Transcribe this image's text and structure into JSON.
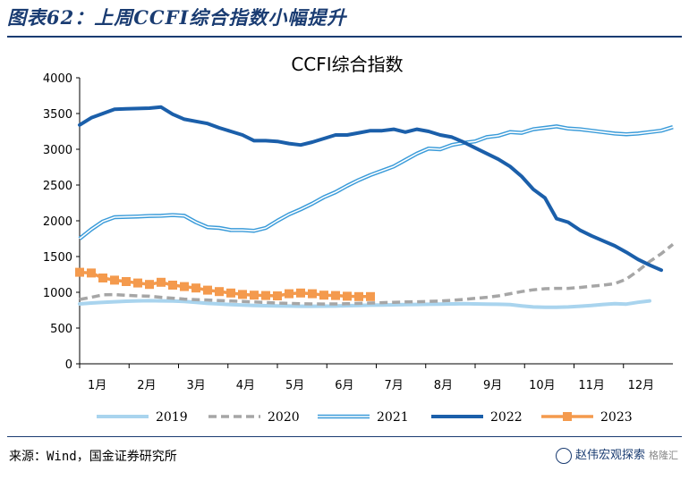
{
  "figure": {
    "title": "图表62：上周CCFI综合指数小幅提升",
    "source": "来源：Wind，国金证券研究所",
    "watermark": "赵伟宏观探索",
    "watermark_sub": "格隆汇"
  },
  "chart_data": {
    "type": "line",
    "title": "CCFI综合指数",
    "xlabel": "",
    "ylabel": "",
    "ylim": [
      0,
      4000
    ],
    "yticks": [
      0,
      500,
      1000,
      1500,
      2000,
      2500,
      3000,
      3500,
      4000
    ],
    "xlim": [
      1,
      52
    ],
    "categories": [
      "1月",
      "2月",
      "3月",
      "4月",
      "5月",
      "6月",
      "7月",
      "8月",
      "9月",
      "10月",
      "11月",
      "12月"
    ],
    "legend_position": "bottom",
    "grid": false,
    "series": [
      {
        "name": "2019",
        "color": "#a9d4ee",
        "style": "solid-thick",
        "x": [
          1,
          2,
          3,
          4,
          5,
          6,
          7,
          8,
          9,
          10,
          11,
          12,
          13,
          14,
          15,
          16,
          17,
          18,
          19,
          20,
          21,
          22,
          23,
          24,
          25,
          26,
          27,
          28,
          29,
          30,
          31,
          32,
          33,
          34,
          35,
          36,
          37,
          38,
          39,
          40,
          41,
          42,
          43,
          44,
          45,
          46,
          47,
          48,
          49,
          50
        ],
        "values": [
          838,
          850,
          860,
          868,
          875,
          880,
          882,
          880,
          878,
          872,
          860,
          845,
          838,
          828,
          822,
          815,
          812,
          810,
          808,
          805,
          805,
          806,
          808,
          812,
          815,
          820,
          822,
          825,
          828,
          830,
          832,
          835,
          838,
          840,
          838,
          835,
          832,
          828,
          810,
          795,
          790,
          790,
          795,
          805,
          815,
          830,
          840,
          835,
          860,
          880
        ]
      },
      {
        "name": "2020",
        "color": "#a6a6a6",
        "style": "dashed",
        "x": [
          1,
          2,
          3,
          4,
          5,
          6,
          7,
          8,
          9,
          10,
          11,
          12,
          13,
          14,
          15,
          16,
          17,
          18,
          19,
          20,
          21,
          22,
          23,
          24,
          25,
          26,
          27,
          28,
          29,
          30,
          31,
          32,
          33,
          34,
          35,
          36,
          37,
          38,
          39,
          40,
          41,
          42,
          43,
          44,
          45,
          46,
          47,
          48,
          49,
          50,
          51,
          52
        ],
        "values": [
          900,
          930,
          965,
          968,
          958,
          950,
          945,
          930,
          918,
          905,
          898,
          892,
          885,
          878,
          872,
          865,
          858,
          850,
          845,
          840,
          838,
          836,
          838,
          840,
          845,
          850,
          855,
          860,
          865,
          868,
          872,
          878,
          888,
          900,
          915,
          930,
          950,
          980,
          1010,
          1035,
          1050,
          1055,
          1055,
          1068,
          1085,
          1100,
          1120,
          1185,
          1300,
          1430,
          1540,
          1670
        ]
      },
      {
        "name": "2021",
        "color": "#3a9bd9",
        "style": "double",
        "x": [
          1,
          2,
          3,
          4,
          5,
          6,
          7,
          8,
          9,
          10,
          11,
          12,
          13,
          14,
          15,
          16,
          17,
          18,
          19,
          20,
          21,
          22,
          23,
          24,
          25,
          26,
          27,
          28,
          29,
          30,
          31,
          32,
          33,
          34,
          35,
          36,
          37,
          38,
          39,
          40,
          41,
          42,
          43,
          44,
          45,
          46,
          47,
          48,
          49,
          50,
          51,
          52
        ],
        "values": [
          1750,
          1880,
          1990,
          2050,
          2055,
          2060,
          2068,
          2070,
          2080,
          2070,
          1980,
          1910,
          1900,
          1870,
          1870,
          1860,
          1900,
          2000,
          2090,
          2160,
          2240,
          2330,
          2400,
          2490,
          2570,
          2640,
          2700,
          2760,
          2850,
          2940,
          3010,
          3000,
          3060,
          3090,
          3110,
          3170,
          3190,
          3240,
          3230,
          3280,
          3300,
          3320,
          3290,
          3280,
          3260,
          3240,
          3220,
          3210,
          3220,
          3240,
          3260,
          3310
        ]
      },
      {
        "name": "2022",
        "color": "#1b5faa",
        "style": "solid-thick",
        "x": [
          1,
          2,
          3,
          4,
          5,
          6,
          7,
          8,
          9,
          10,
          11,
          12,
          13,
          14,
          15,
          16,
          17,
          18,
          19,
          20,
          21,
          22,
          23,
          24,
          25,
          26,
          27,
          28,
          29,
          30,
          31,
          32,
          33,
          34,
          35,
          36,
          37,
          38,
          39,
          40,
          41,
          42,
          43,
          44,
          45,
          46,
          47,
          48,
          49,
          50,
          51
        ],
        "values": [
          3340,
          3440,
          3500,
          3560,
          3565,
          3570,
          3575,
          3590,
          3490,
          3420,
          3390,
          3360,
          3300,
          3250,
          3200,
          3120,
          3120,
          3110,
          3080,
          3060,
          3100,
          3150,
          3200,
          3200,
          3230,
          3260,
          3260,
          3280,
          3240,
          3280,
          3250,
          3200,
          3170,
          3100,
          3020,
          2940,
          2860,
          2760,
          2620,
          2440,
          2320,
          2030,
          1980,
          1870,
          1790,
          1720,
          1650,
          1560,
          1460,
          1380,
          1310
        ]
      },
      {
        "name": "2023",
        "color": "#f49a4d",
        "style": "marker-square",
        "x": [
          1,
          2,
          3,
          4,
          5,
          6,
          7,
          8,
          9,
          10,
          11,
          12,
          13,
          14,
          15,
          16,
          17,
          18,
          19,
          20,
          21,
          22,
          23,
          24,
          25,
          26
        ],
        "values": [
          1280,
          1270,
          1200,
          1170,
          1150,
          1130,
          1110,
          1140,
          1100,
          1080,
          1060,
          1030,
          1010,
          990,
          970,
          960,
          955,
          950,
          980,
          990,
          980,
          960,
          955,
          945,
          940,
          940
        ]
      }
    ]
  }
}
